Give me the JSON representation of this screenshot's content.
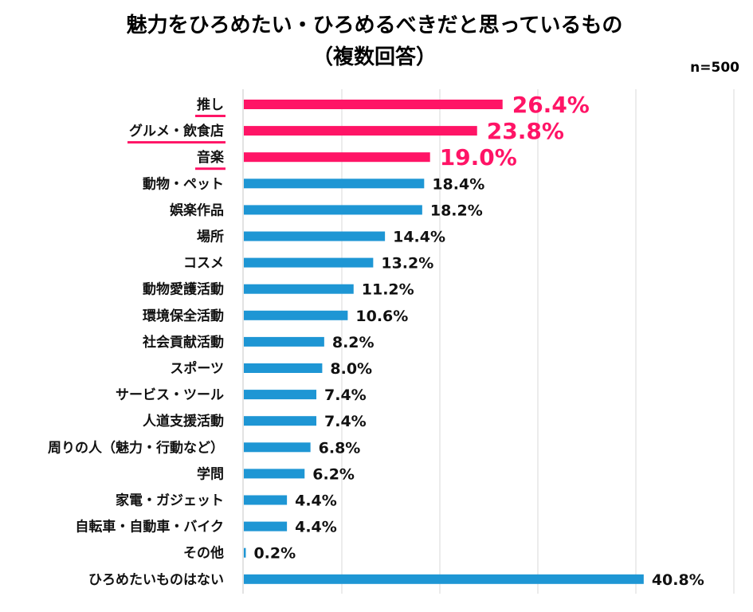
{
  "chart_data": {
    "type": "bar",
    "orientation": "horizontal",
    "title": "魅力をひろめたい・ひろめるべきだと思っているもの",
    "subtitle": "（複数回答）",
    "sample_size": "n=500",
    "xlim": [
      0,
      50
    ],
    "grid": true,
    "unit": "%",
    "highlight_color": "#FF1466",
    "bar_color": "#1E96D4",
    "categories": [
      "推し",
      "グルメ・飲食店",
      "音楽",
      "動物・ペット",
      "娯楽作品",
      "場所",
      "コスメ",
      "動物愛護活動",
      "環境保全活動",
      "社会貢献活動",
      "スポーツ",
      "サービス・ツール",
      "人道支援活動",
      "周りの人（魅力・行動など）",
      "学問",
      "家電・ガジェット",
      "自転車・自動車・バイク",
      "その他",
      "ひろめたいものはない"
    ],
    "values": [
      26.4,
      23.8,
      19.0,
      18.4,
      18.2,
      14.4,
      13.2,
      11.2,
      10.6,
      8.2,
      8.0,
      7.4,
      7.4,
      6.8,
      6.2,
      4.4,
      4.4,
      0.2,
      40.8
    ],
    "labels": [
      "26.4%",
      "23.8%",
      "19.0%",
      "18.4%",
      "18.2%",
      "14.4%",
      "13.2%",
      "11.2%",
      "10.6%",
      "8.2%",
      "8.0%",
      "7.4%",
      "7.4%",
      "6.8%",
      "6.2%",
      "4.4%",
      "4.4%",
      "0.2%",
      "40.8%"
    ],
    "highlighted": [
      0,
      1,
      2
    ]
  }
}
